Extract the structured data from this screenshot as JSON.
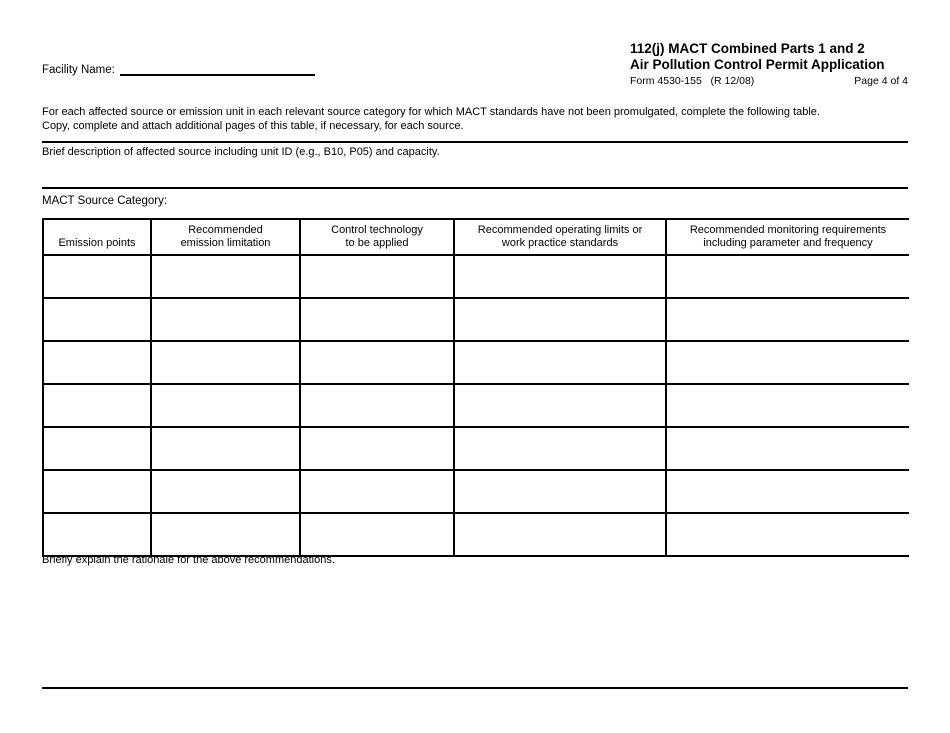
{
  "header": {
    "facility_label": "Facility Name:",
    "title_line1": "112(j) MACT Combined Parts 1 and 2",
    "title_line2": "Air Pollution Control Permit Application",
    "form_number": "Form 4530-155   (R 12/08)",
    "page_number": "Page 4 of 4"
  },
  "intro": {
    "line1": "For each affected source or emission unit in each relevant source category for which MACT standards have not been promulgated, complete the following table.",
    "line2": "Copy, complete and attach additional pages of this table, if necessary, for each source."
  },
  "sections": {
    "brief_description_label": "Brief description of affected source including unit ID (e.g., B10, P05) and capacity.",
    "mact_source_category_label": "MACT Source Category:",
    "rationale_label": "Briefly explain the rationale for the above recommendations."
  },
  "table": {
    "columns": [
      {
        "key": "emission-points",
        "label": "Emission points"
      },
      {
        "key": "recommended-emission-limitation",
        "label": "Recommended\nemission limitation"
      },
      {
        "key": "control-technology-to-be-applied",
        "label": "Control technology\nto be applied"
      },
      {
        "key": "operating-limits-or-work-practice-standards",
        "label": "Recommended operating limits or\nwork practice standards"
      },
      {
        "key": "monitoring-requirements",
        "label": "Recommended monitoring requirements\nincluding parameter and frequency"
      }
    ],
    "row_count": 7,
    "cell_value": ""
  }
}
